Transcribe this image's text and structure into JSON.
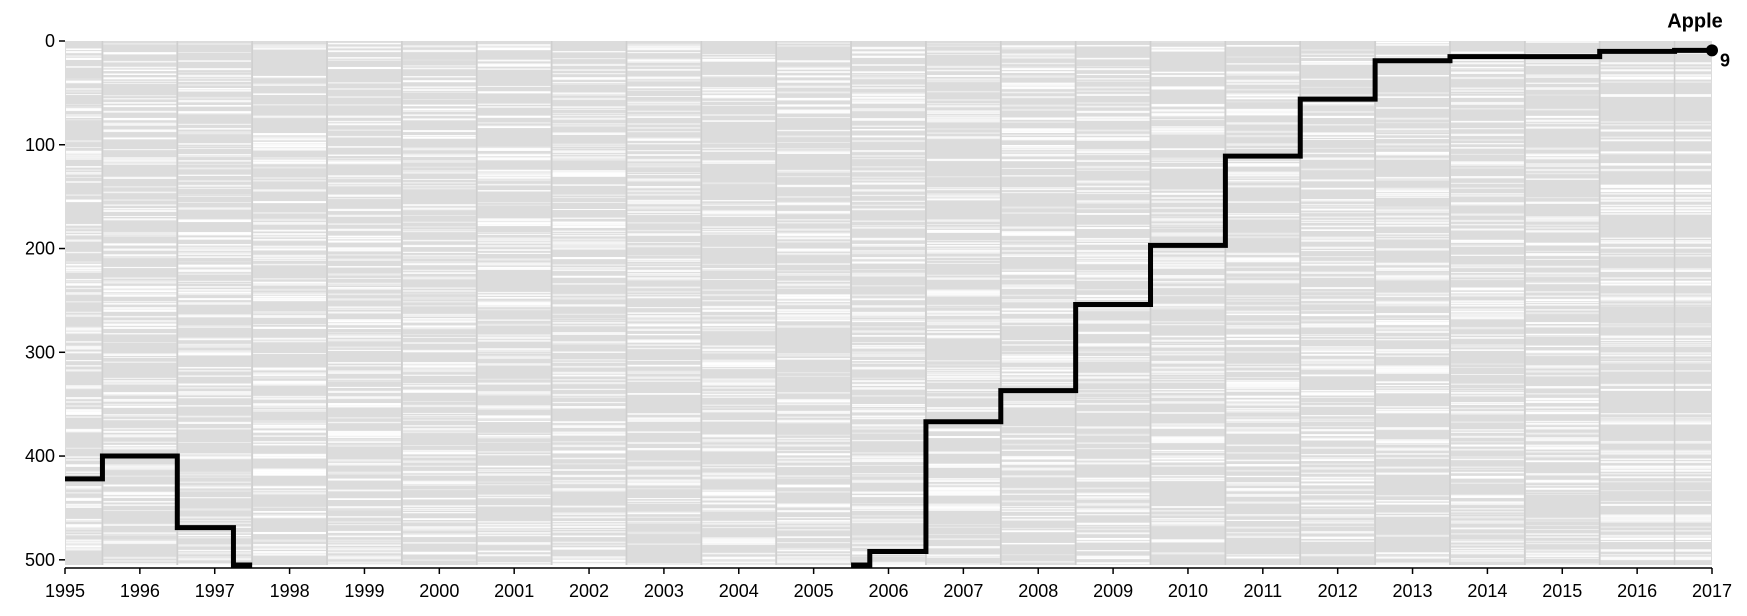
{
  "chart_data": {
    "type": "line",
    "title": "",
    "xlabel": "",
    "ylabel": "",
    "x_axis": {
      "ticks": [
        "1995",
        "1996",
        "1997",
        "1998",
        "1999",
        "2000",
        "2001",
        "2002",
        "2003",
        "2004",
        "2005",
        "2006",
        "2007",
        "2008",
        "2009",
        "2010",
        "2011",
        "2012",
        "2013",
        "2014",
        "2015",
        "2016",
        "2017"
      ],
      "range": [
        1995,
        2017
      ]
    },
    "y_axis": {
      "ticks": [
        "0",
        "100",
        "200",
        "300",
        "400",
        "500"
      ],
      "range": [
        0,
        505
      ],
      "reversed": true
    },
    "grid": false,
    "background_bands": {
      "description": "each year column shows all ranks 1 to 500 as light gray lines",
      "color": "#dcdcdc"
    },
    "series": [
      {
        "name": "Apple",
        "interpolation": "step",
        "color": "#000000",
        "segments": [
          [
            {
              "x": 1995.0,
              "y": 422
            },
            {
              "x": 1996.0,
              "y": 400
            },
            {
              "x": 1997.0,
              "y": 469
            },
            {
              "x": 1997.5,
              "y": 505
            }
          ],
          [
            {
              "x": 2005.5,
              "y": 505
            },
            {
              "x": 2006.0,
              "y": 492
            },
            {
              "x": 2007.0,
              "y": 367
            },
            {
              "x": 2008.0,
              "y": 337
            },
            {
              "x": 2009.0,
              "y": 254
            },
            {
              "x": 2010.0,
              "y": 197
            },
            {
              "x": 2011.0,
              "y": 111
            },
            {
              "x": 2012.0,
              "y": 56
            },
            {
              "x": 2013.0,
              "y": 19
            },
            {
              "x": 2014.0,
              "y": 15
            },
            {
              "x": 2015.0,
              "y": 15
            },
            {
              "x": 2016.0,
              "y": 10
            },
            {
              "x": 2017.0,
              "y": 9
            }
          ]
        ],
        "end_label": "Apple",
        "end_value_label": "9"
      }
    ]
  },
  "colors": {
    "line": "#000000",
    "band_background": "#dcdcdc",
    "band_line": "#ffffff",
    "axis": "#000000",
    "text": "#000000"
  }
}
